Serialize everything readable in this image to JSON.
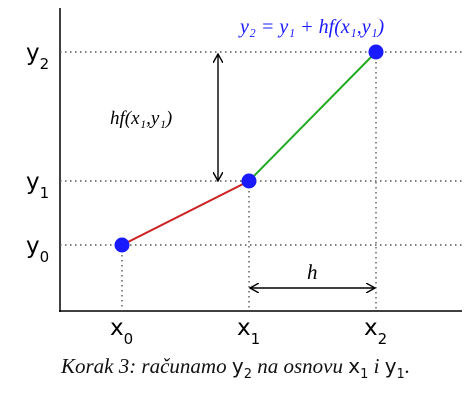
{
  "axis_labels": {
    "y": [
      {
        "base": "y",
        "sub": "0"
      },
      {
        "base": "y",
        "sub": "1"
      },
      {
        "base": "y",
        "sub": "2"
      }
    ],
    "x": [
      {
        "base": "x",
        "sub": "0"
      },
      {
        "base": "x",
        "sub": "1"
      },
      {
        "base": "x",
        "sub": "2"
      }
    ]
  },
  "annotations": {
    "formula_top": "y₂ = y₁ + hf(x₁,y₁)",
    "vertical_span": "hf(x₁,y₁)",
    "horizontal_span": "h"
  },
  "caption": {
    "prefix": "Korak 3: računamo ",
    "v1": "y",
    "v1_sub": "2",
    "middle": " na osnovu ",
    "v2": "x",
    "v2_sub": "1",
    "conj": " i ",
    "v3": "y",
    "v3_sub": "1",
    "end": "."
  },
  "colors": {
    "point": "#1a1aff",
    "segment_1": "#cc2222",
    "segment_2": "#22aa22",
    "formula": "#1a1aff"
  }
}
